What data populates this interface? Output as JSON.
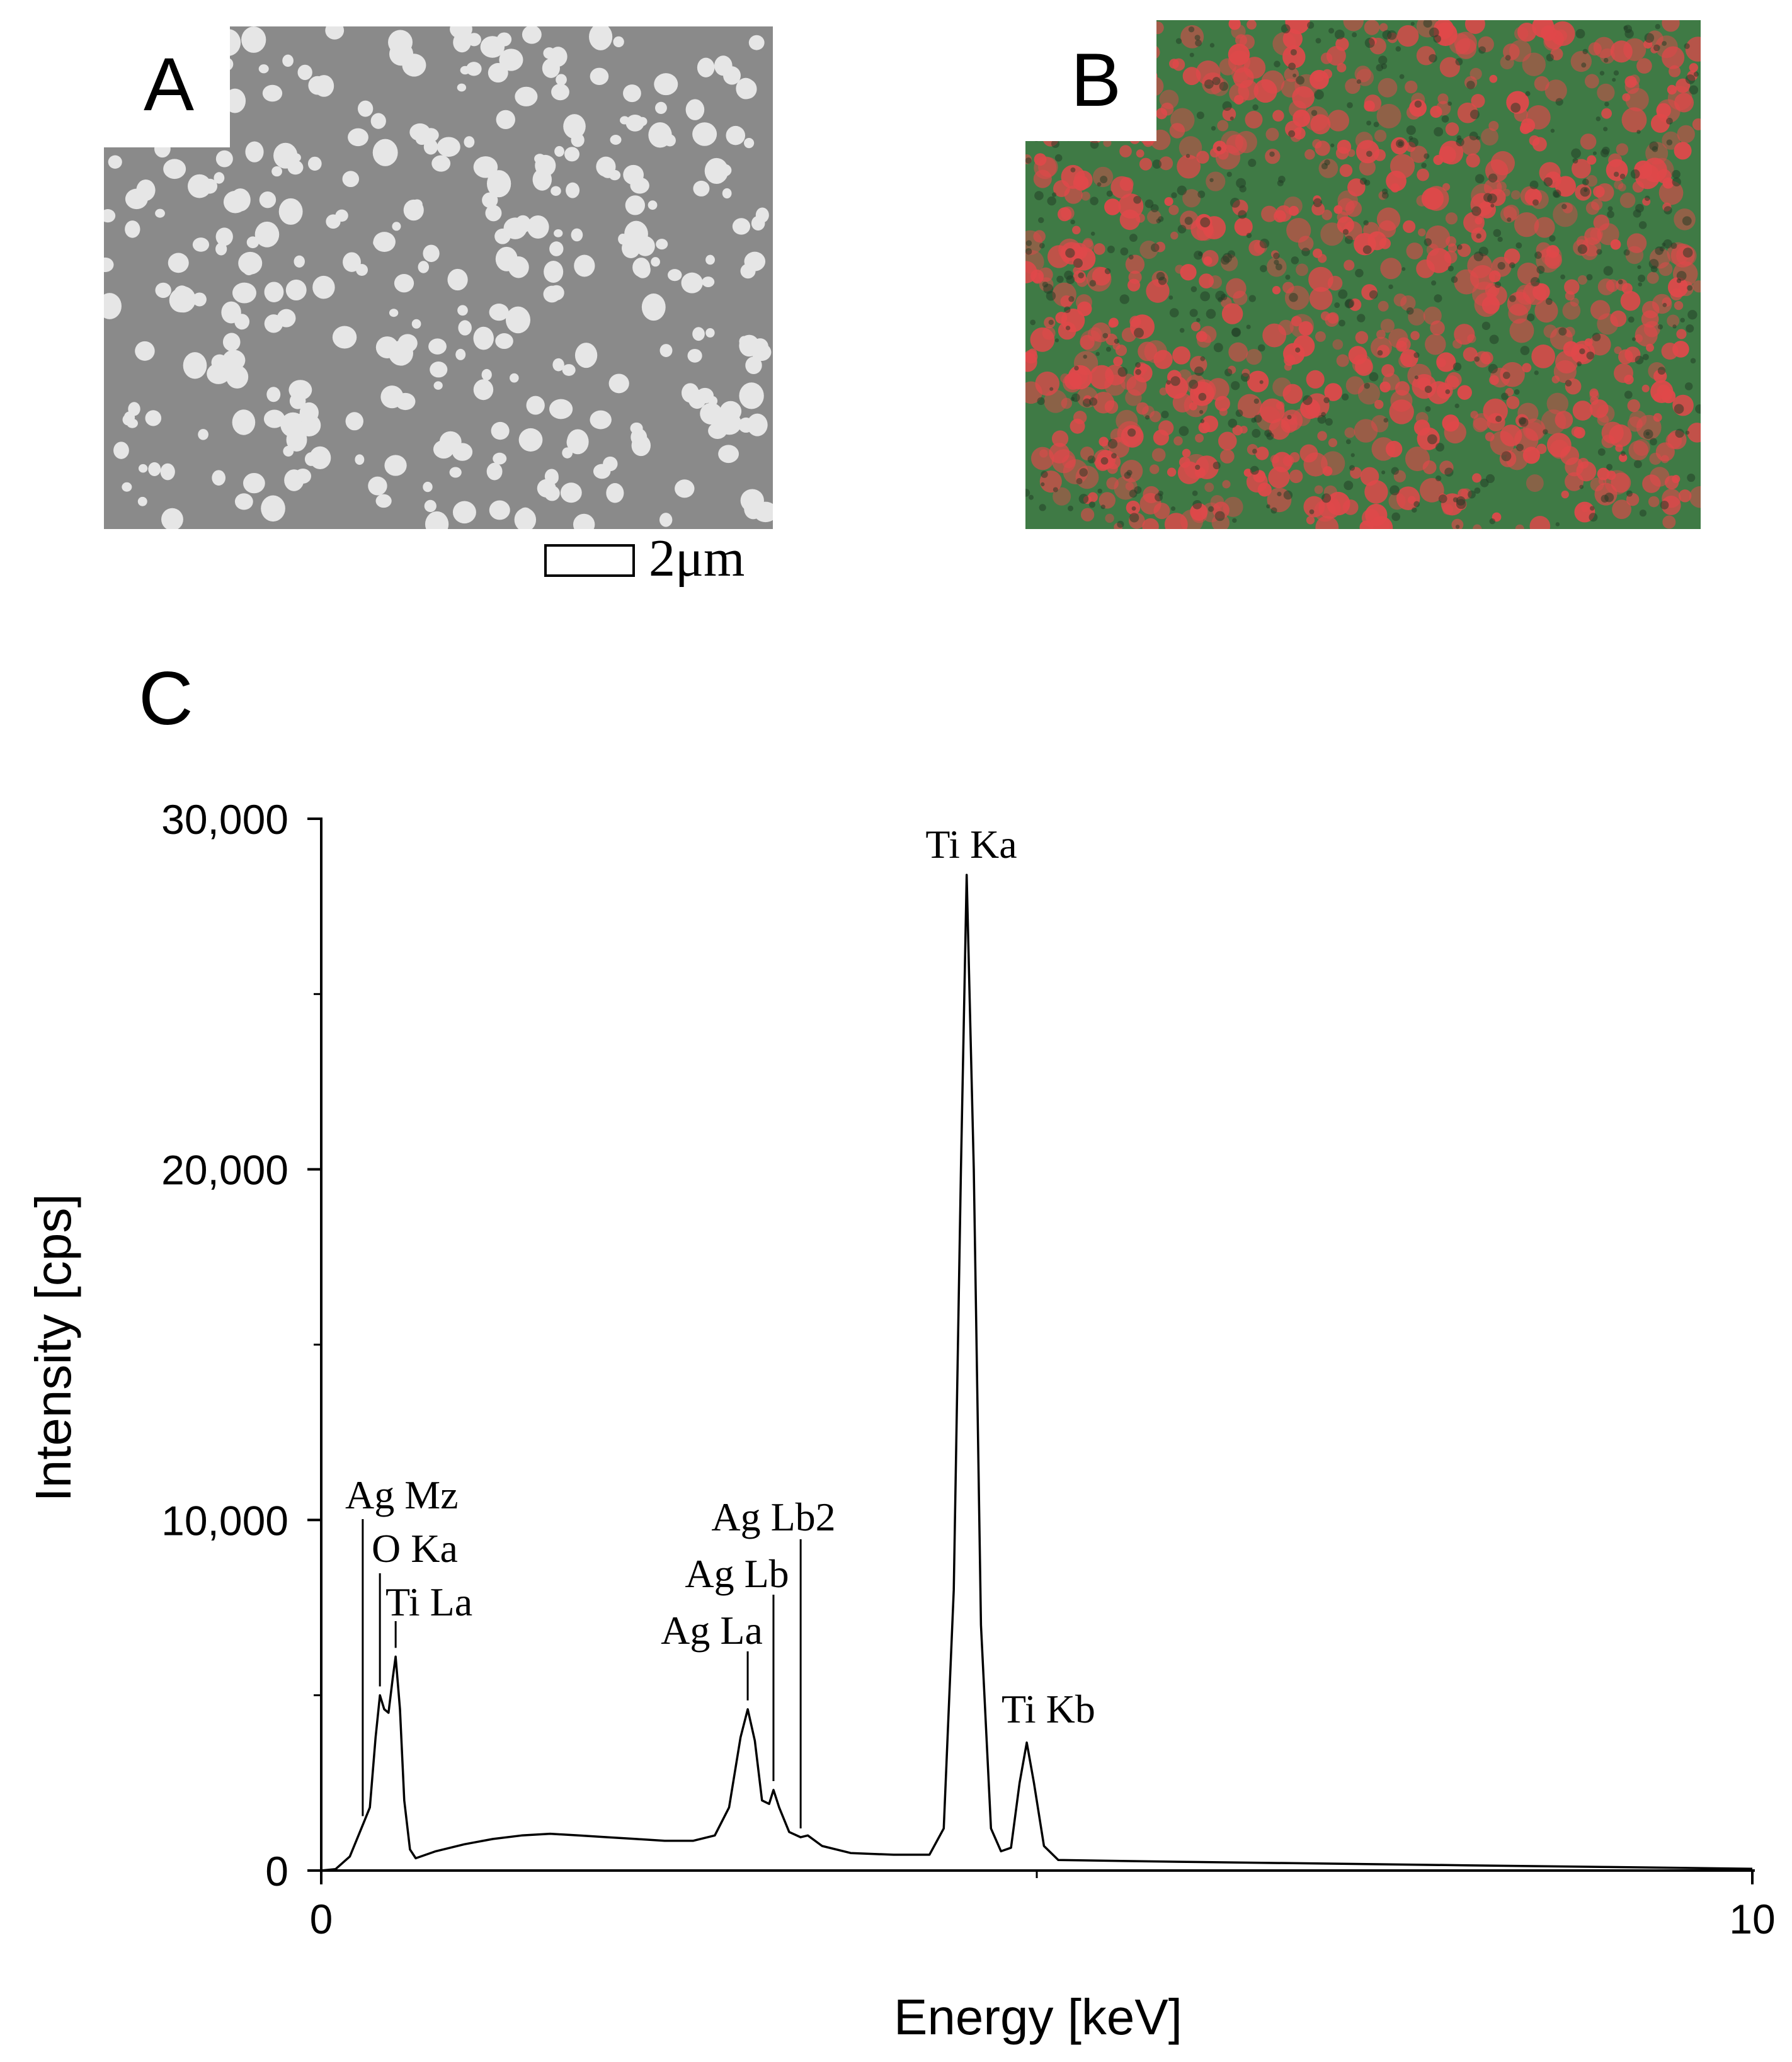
{
  "panels": {
    "a": {
      "label": "A",
      "scale_bar": "2μm"
    },
    "b": {
      "label": "B"
    },
    "c": {
      "label": "C"
    }
  },
  "colors": {
    "sem_background": "#8a8a8a",
    "sem_particle": "#e6e6e6",
    "map_green": "#3f7a45",
    "map_red": "#e0484a",
    "line": "#000000"
  },
  "chart_data": {
    "type": "line",
    "xlabel": "Energy [keV]",
    "ylabel": "Intensity [cps]",
    "xlim": [
      0,
      10
    ],
    "ylim": [
      0,
      30000
    ],
    "x_ticks": [
      0,
      10
    ],
    "x_tick_labels": [
      "0",
      "10"
    ],
    "y_ticks": [
      0,
      10000,
      20000,
      30000
    ],
    "y_tick_labels": [
      "0",
      "10,000",
      "20,000",
      "30,000"
    ],
    "grid": false,
    "series": [
      {
        "points": [
          [
            0.0,
            0
          ],
          [
            0.1,
            40
          ],
          [
            0.2,
            400
          ],
          [
            0.26,
            1000
          ],
          [
            0.3,
            1400
          ],
          [
            0.34,
            1800
          ],
          [
            0.38,
            3800
          ],
          [
            0.41,
            5000
          ],
          [
            0.44,
            4600
          ],
          [
            0.47,
            4500
          ],
          [
            0.5,
            5500
          ],
          [
            0.52,
            6100
          ],
          [
            0.55,
            4600
          ],
          [
            0.58,
            2000
          ],
          [
            0.62,
            600
          ],
          [
            0.66,
            350
          ],
          [
            0.8,
            550
          ],
          [
            1.0,
            750
          ],
          [
            1.2,
            900
          ],
          [
            1.4,
            1000
          ],
          [
            1.6,
            1050
          ],
          [
            1.8,
            1000
          ],
          [
            2.0,
            950
          ],
          [
            2.2,
            900
          ],
          [
            2.4,
            850
          ],
          [
            2.6,
            850
          ],
          [
            2.75,
            1000
          ],
          [
            2.85,
            1800
          ],
          [
            2.93,
            3800
          ],
          [
            2.98,
            4600
          ],
          [
            3.03,
            3700
          ],
          [
            3.08,
            2000
          ],
          [
            3.13,
            1900
          ],
          [
            3.16,
            2300
          ],
          [
            3.2,
            1800
          ],
          [
            3.27,
            1100
          ],
          [
            3.35,
            950
          ],
          [
            3.4,
            1000
          ],
          [
            3.5,
            700
          ],
          [
            3.7,
            500
          ],
          [
            4.0,
            450
          ],
          [
            4.25,
            450
          ],
          [
            4.35,
            1200
          ],
          [
            4.42,
            8000
          ],
          [
            4.47,
            20000
          ],
          [
            4.51,
            28400
          ],
          [
            4.56,
            20000
          ],
          [
            4.61,
            7000
          ],
          [
            4.68,
            1200
          ],
          [
            4.75,
            550
          ],
          [
            4.82,
            650
          ],
          [
            4.88,
            2500
          ],
          [
            4.93,
            3650
          ],
          [
            4.98,
            2500
          ],
          [
            5.05,
            700
          ],
          [
            5.15,
            300
          ],
          [
            6.0,
            250
          ],
          [
            7.0,
            200
          ],
          [
            8.0,
            150
          ],
          [
            9.0,
            100
          ],
          [
            10.0,
            50
          ]
        ]
      }
    ],
    "annotations": [
      {
        "text": "Ag Mz",
        "x": 0.29
      },
      {
        "text": "O Ka",
        "x": 0.41
      },
      {
        "text": "Ti La",
        "x": 0.52
      },
      {
        "text": "Ag La",
        "x": 2.98
      },
      {
        "text": "Ag Lb",
        "x": 3.16
      },
      {
        "text": "Ag Lb2",
        "x": 3.35
      },
      {
        "text": "Ti Ka",
        "x": 4.51
      },
      {
        "text": "Ti Kb",
        "x": 4.93
      }
    ]
  }
}
